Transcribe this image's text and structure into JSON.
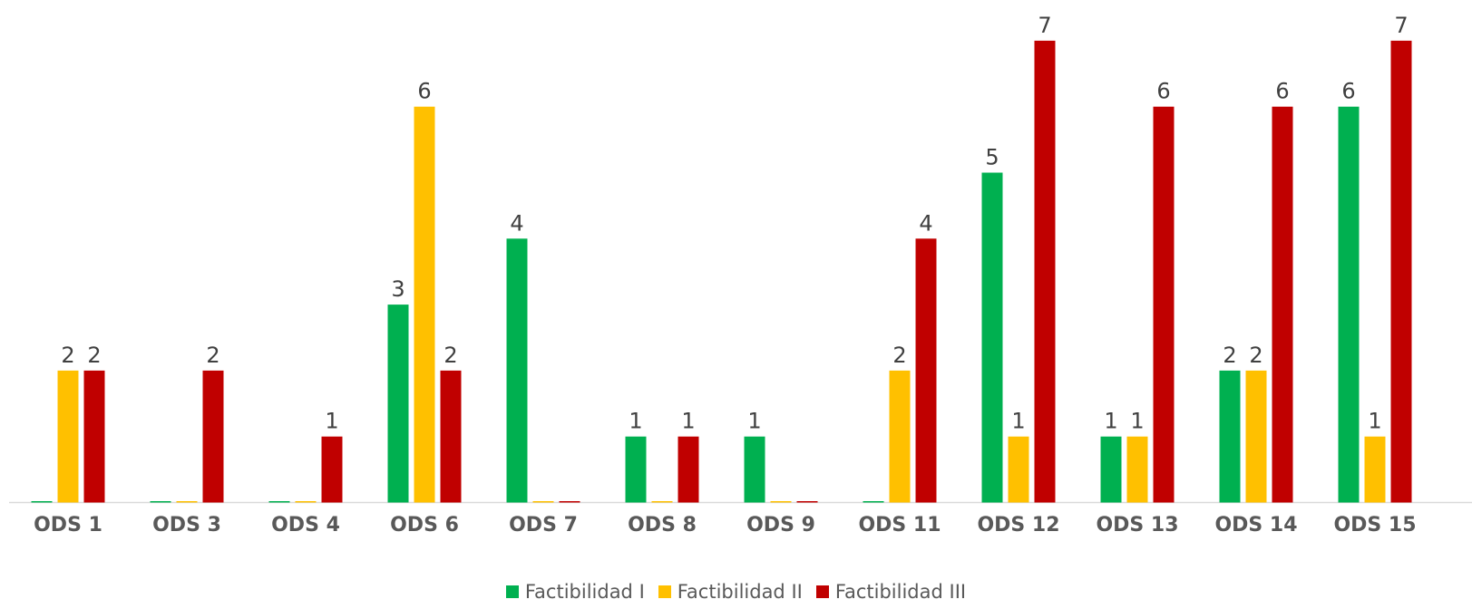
{
  "chart_data": {
    "type": "bar",
    "categories": [
      "ODS 1",
      "ODS 3",
      "ODS 4",
      "ODS 6",
      "ODS 7",
      "ODS 8",
      "ODS 9",
      "ODS 11",
      "ODS 12",
      "ODS 13",
      "ODS 14",
      "ODS 15"
    ],
    "series": [
      {
        "name": "Factibilidad I",
        "color": "#00b050",
        "values": [
          0,
          0,
          0,
          3,
          4,
          1,
          1,
          0,
          5,
          1,
          2,
          6
        ]
      },
      {
        "name": "Factibilidad II",
        "color": "#ffc000",
        "values": [
          2,
          0,
          0,
          6,
          0,
          0,
          0,
          2,
          1,
          1,
          2,
          1
        ]
      },
      {
        "name": "Factibilidad III",
        "color": "#c00000",
        "values": [
          2,
          2,
          1,
          2,
          0,
          1,
          0,
          4,
          7,
          6,
          6,
          7
        ]
      }
    ],
    "ylim": [
      0,
      7
    ],
    "grid": false,
    "legend_position": "bottom-center",
    "show_zero_labels": false
  }
}
